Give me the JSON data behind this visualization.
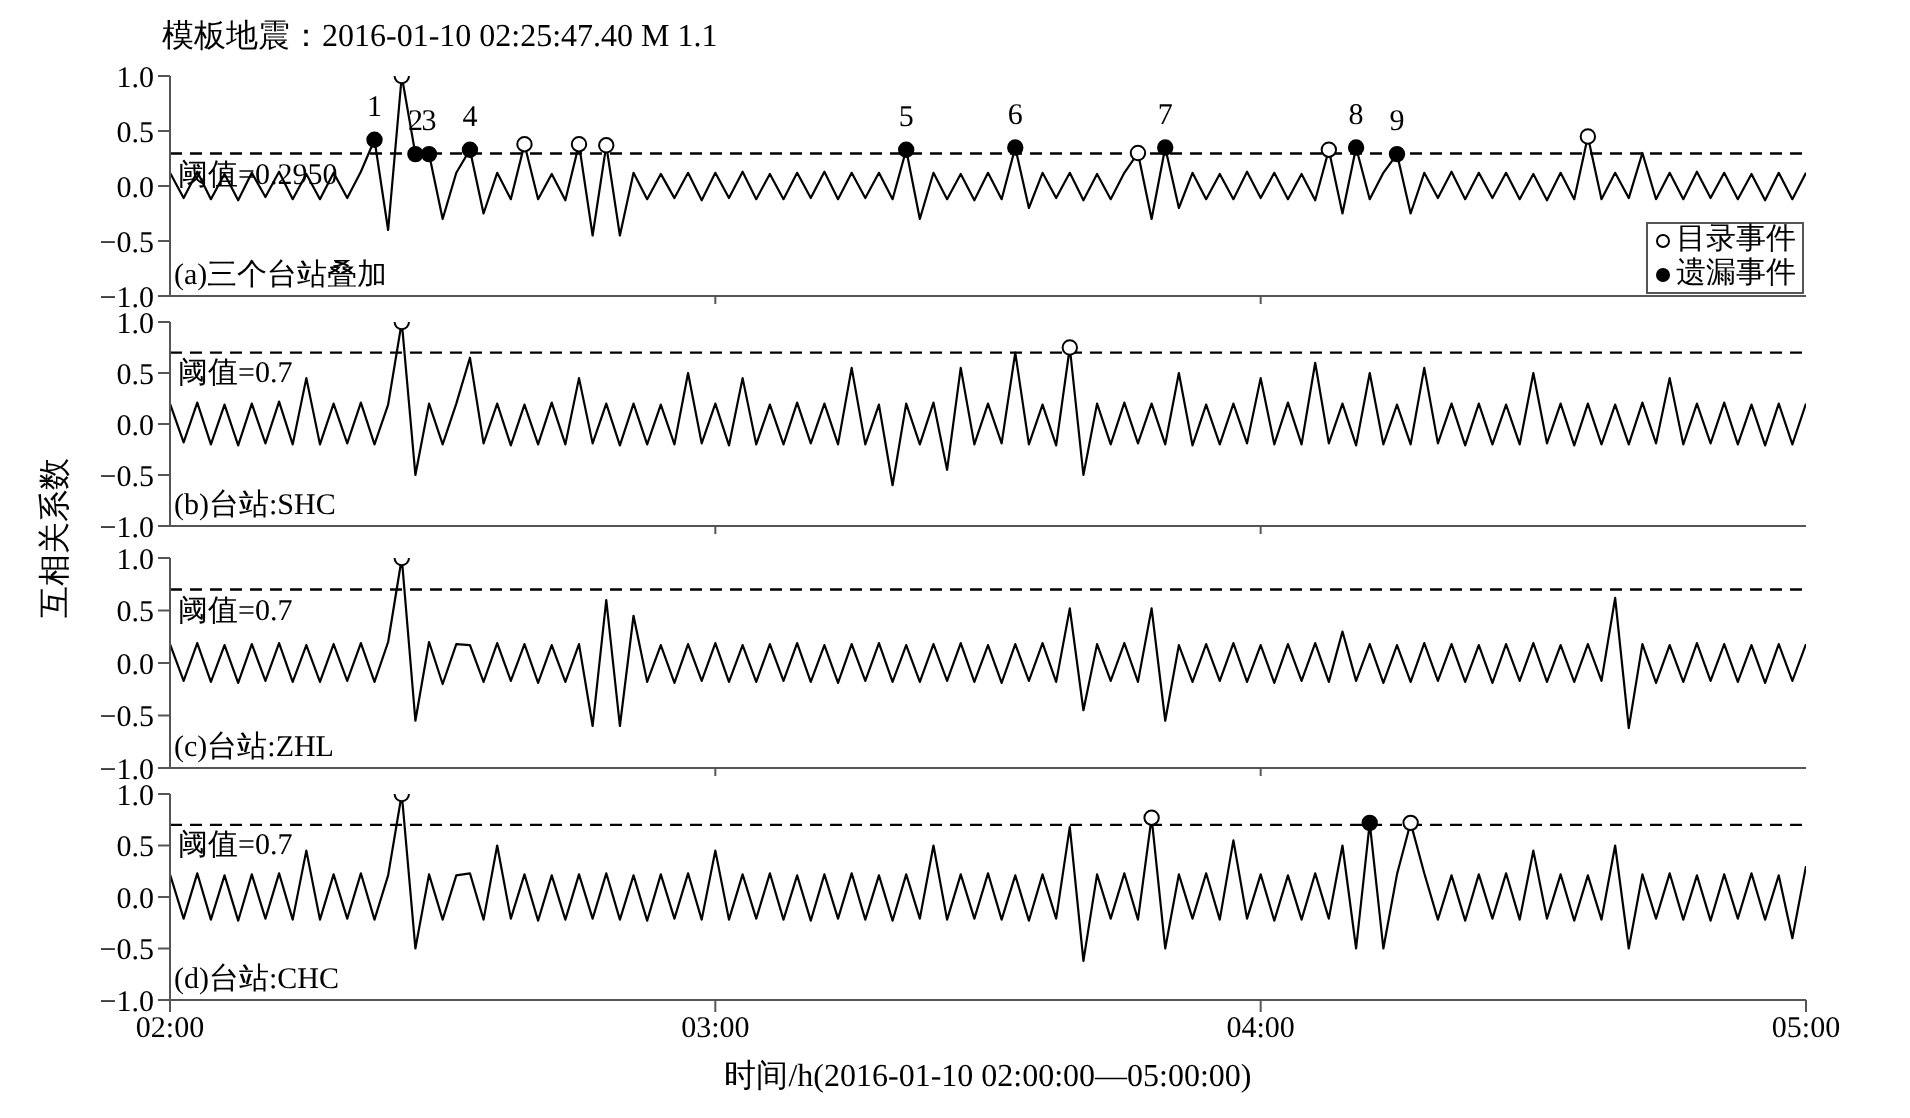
{
  "chart_data": [
    {
      "type": "line",
      "title": "模板地震：2016-01-10 02:25:47.40 M 1.1",
      "ylabel": "互相关系数",
      "xlim": [
        2,
        5
      ],
      "ylim": [
        -1,
        1
      ],
      "xticks": [
        {
          "value": 3,
          "label": null
        },
        {
          "value": 4,
          "label": null
        }
      ],
      "yticks": [
        {
          "value": -1,
          "label": "−1.0"
        },
        {
          "value": -0.5,
          "label": "−0.5"
        },
        {
          "value": 0,
          "label": "0.0"
        },
        {
          "value": 0.5,
          "label": "0.5"
        },
        {
          "value": 1,
          "label": "1.0"
        }
      ],
      "tick_labels": "y",
      "legend": "bottom right",
      "ref_lines": [
        {
          "axis": "y",
          "value": 0.295,
          "label": "阈值=0.2950",
          "line_style": "dashed",
          "color": "#000000"
        }
      ],
      "annotations": [
        "(a)三个台站叠加",
        {
          "text": "1",
          "x": 2.375,
          "y": 0.42
        },
        {
          "text": "2",
          "x": 2.45,
          "y": 0.29
        },
        {
          "text": "3",
          "x": 2.475,
          "y": 0.29
        },
        {
          "text": "4",
          "x": 2.55,
          "y": 0.33
        },
        {
          "text": "5",
          "x": 3.35,
          "y": 0.33
        },
        {
          "text": "6",
          "x": 3.55,
          "y": 0.35
        },
        {
          "text": "7",
          "x": 3.825,
          "y": 0.35
        },
        {
          "text": "8",
          "x": 4.175,
          "y": 0.35
        },
        {
          "text": "9",
          "x": 4.25,
          "y": 0.29
        }
      ],
      "x": [
        2,
        2.025,
        2.05,
        2.075,
        2.1,
        2.125,
        2.15,
        2.175,
        2.2,
        2.225,
        2.25,
        2.275,
        2.3,
        2.325,
        2.35,
        2.375,
        2.4,
        2.425,
        2.45,
        2.475,
        2.5,
        2.525,
        2.55,
        2.575,
        2.6,
        2.625,
        2.65,
        2.675,
        2.7,
        2.725,
        2.75,
        2.775,
        2.8,
        2.825,
        2.85,
        2.875,
        2.9,
        2.925,
        2.95,
        2.975,
        3,
        3.025,
        3.05,
        3.075,
        3.1,
        3.125,
        3.15,
        3.175,
        3.2,
        3.225,
        3.25,
        3.275,
        3.3,
        3.325,
        3.35,
        3.375,
        3.4,
        3.425,
        3.45,
        3.475,
        3.5,
        3.525,
        3.55,
        3.575,
        3.6,
        3.625,
        3.65,
        3.675,
        3.7,
        3.725,
        3.75,
        3.775,
        3.8,
        3.825,
        3.85,
        3.875,
        3.9,
        3.925,
        3.95,
        3.975,
        4,
        4.025,
        4.05,
        4.075,
        4.1,
        4.125,
        4.15,
        4.175,
        4.2,
        4.225,
        4.25,
        4.275,
        4.3,
        4.325,
        4.35,
        4.375,
        4.4,
        4.425,
        4.45,
        4.475,
        4.5,
        4.525,
        4.55,
        4.575,
        4.6,
        4.625,
        4.65,
        4.675,
        4.7,
        4.725,
        4.75,
        4.775,
        4.8,
        4.825,
        4.85,
        4.875,
        4.9,
        4.925,
        4.95,
        4.975,
        5
      ],
      "series": [
        {
          "color": "#000000",
          "values": [
            0.12,
            -0.11,
            0.13,
            -0.12,
            0.11,
            -0.13,
            0.12,
            -0.1,
            0.13,
            -0.12,
            0.11,
            -0.12,
            0.12,
            -0.11,
            0.13,
            0.42,
            -0.4,
            1.0,
            0.29,
            0.29,
            -0.3,
            0.12,
            0.33,
            -0.25,
            0.12,
            -0.12,
            0.38,
            -0.12,
            0.11,
            -0.13,
            0.38,
            -0.45,
            0.37,
            -0.45,
            0.12,
            -0.12,
            0.11,
            -0.11,
            0.12,
            -0.13,
            0.12,
            -0.11,
            0.13,
            -0.12,
            0.11,
            -0.12,
            0.12,
            -0.11,
            0.13,
            -0.12,
            0.12,
            -0.11,
            0.12,
            -0.12,
            0.33,
            -0.3,
            0.12,
            -0.12,
            0.11,
            -0.13,
            0.12,
            -0.12,
            0.35,
            -0.2,
            0.12,
            -0.11,
            0.12,
            -0.13,
            0.11,
            -0.12,
            0.12,
            0.3,
            -0.3,
            0.35,
            -0.2,
            0.12,
            -0.12,
            0.11,
            -0.12,
            0.13,
            -0.11,
            0.12,
            -0.12,
            0.11,
            -0.13,
            0.33,
            -0.25,
            0.35,
            -0.12,
            0.12,
            0.29,
            -0.25,
            0.12,
            -0.11,
            0.13,
            -0.12,
            0.12,
            -0.11,
            0.12,
            -0.12,
            0.11,
            -0.13,
            0.12,
            -0.12,
            0.45,
            -0.12,
            0.12,
            -0.11,
            0.3,
            -0.12,
            0.12,
            -0.12,
            0.13,
            -0.11,
            0.12,
            -0.12,
            0.11,
            -0.13,
            0.12,
            -0.12,
            0.12
          ]
        },
        {
          "type": "scatter",
          "name": "目录事件",
          "marker": "circle",
          "color": "#ffffff",
          "x": [
            2.425,
            2.65,
            2.75,
            2.8,
            3.775,
            4.125,
            4.6
          ],
          "values": [
            1.0,
            0.38,
            0.38,
            0.37,
            0.3,
            0.33,
            0.45
          ]
        },
        {
          "type": "scatter",
          "name": "遗漏事件",
          "marker": "circle",
          "color": "#000000",
          "x": [
            2.375,
            2.45,
            2.475,
            2.55,
            3.35,
            3.55,
            3.825,
            4.175,
            4.25
          ],
          "values": [
            0.42,
            0.29,
            0.29,
            0.33,
            0.33,
            0.35,
            0.35,
            0.35,
            0.29
          ]
        }
      ]
    },
    {
      "type": "line",
      "xlim": [
        2,
        5
      ],
      "ylim": [
        -1,
        1
      ],
      "xticks": [
        {
          "value": 3,
          "label": null
        },
        {
          "value": 4,
          "label": null
        }
      ],
      "yticks": [
        {
          "value": -1,
          "label": "−1.0"
        },
        {
          "value": -0.5,
          "label": "−0.5"
        },
        {
          "value": 0,
          "label": "0.0"
        },
        {
          "value": 0.5,
          "label": "0.5"
        },
        {
          "value": 1,
          "label": "1.0"
        }
      ],
      "tick_labels": "y",
      "ref_lines": [
        {
          "axis": "y",
          "value": 0.7,
          "label": "阈值=0.7",
          "line_style": "dashed",
          "color": "#000000"
        }
      ],
      "annotations": [
        "(b)台站:SHC"
      ],
      "x": [
        2,
        2.025,
        2.05,
        2.075,
        2.1,
        2.125,
        2.15,
        2.175,
        2.2,
        2.225,
        2.25,
        2.275,
        2.3,
        2.325,
        2.35,
        2.375,
        2.4,
        2.425,
        2.45,
        2.475,
        2.5,
        2.525,
        2.55,
        2.575,
        2.6,
        2.625,
        2.65,
        2.675,
        2.7,
        2.725,
        2.75,
        2.775,
        2.8,
        2.825,
        2.85,
        2.875,
        2.9,
        2.925,
        2.95,
        2.975,
        3,
        3.025,
        3.05,
        3.075,
        3.1,
        3.125,
        3.15,
        3.175,
        3.2,
        3.225,
        3.25,
        3.275,
        3.3,
        3.325,
        3.35,
        3.375,
        3.4,
        3.425,
        3.45,
        3.475,
        3.5,
        3.525,
        3.55,
        3.575,
        3.6,
        3.625,
        3.65,
        3.675,
        3.7,
        3.725,
        3.75,
        3.775,
        3.8,
        3.825,
        3.85,
        3.875,
        3.9,
        3.925,
        3.95,
        3.975,
        4,
        4.025,
        4.05,
        4.075,
        4.1,
        4.125,
        4.15,
        4.175,
        4.2,
        4.225,
        4.25,
        4.275,
        4.3,
        4.325,
        4.35,
        4.375,
        4.4,
        4.425,
        4.45,
        4.475,
        4.5,
        4.525,
        4.55,
        4.575,
        4.6,
        4.625,
        4.65,
        4.675,
        4.7,
        4.725,
        4.75,
        4.775,
        4.8,
        4.825,
        4.85,
        4.875,
        4.9,
        4.925,
        4.95,
        4.975,
        5
      ],
      "series": [
        {
          "color": "#000000",
          "values": [
            0.2,
            -0.18,
            0.21,
            -0.2,
            0.19,
            -0.21,
            0.2,
            -0.19,
            0.22,
            -0.2,
            0.45,
            -0.2,
            0.2,
            -0.19,
            0.21,
            -0.2,
            0.19,
            1.0,
            -0.5,
            0.2,
            -0.2,
            0.2,
            0.65,
            -0.19,
            0.2,
            -0.21,
            0.19,
            -0.2,
            0.21,
            -0.2,
            0.45,
            -0.19,
            0.2,
            -0.21,
            0.2,
            -0.2,
            0.19,
            -0.2,
            0.5,
            -0.19,
            0.2,
            -0.21,
            0.45,
            -0.2,
            0.19,
            -0.2,
            0.21,
            -0.19,
            0.2,
            -0.2,
            0.55,
            -0.2,
            0.19,
            -0.6,
            0.2,
            -0.2,
            0.21,
            -0.45,
            0.55,
            -0.2,
            0.2,
            -0.19,
            0.7,
            -0.2,
            0.19,
            -0.21,
            0.75,
            -0.5,
            0.2,
            -0.2,
            0.21,
            -0.19,
            0.2,
            -0.2,
            0.5,
            -0.21,
            0.19,
            -0.2,
            0.2,
            -0.19,
            0.45,
            -0.2,
            0.21,
            -0.2,
            0.6,
            -0.19,
            0.2,
            -0.21,
            0.5,
            -0.2,
            0.19,
            -0.2,
            0.55,
            -0.19,
            0.2,
            -0.21,
            0.2,
            -0.2,
            0.19,
            -0.2,
            0.5,
            -0.19,
            0.2,
            -0.21,
            0.2,
            -0.2,
            0.19,
            -0.2,
            0.21,
            -0.19,
            0.45,
            -0.2,
            0.2,
            -0.19,
            0.21,
            -0.2,
            0.19,
            -0.21,
            0.2,
            -0.2,
            0.2
          ]
        },
        {
          "type": "scatter",
          "marker": "circle",
          "color": "#ffffff",
          "x": [
            2.425,
            3.65
          ],
          "values": [
            1.0,
            0.75
          ]
        }
      ]
    },
    {
      "type": "line",
      "xlim": [
        2,
        5
      ],
      "ylim": [
        -1,
        1
      ],
      "xticks": [
        {
          "value": 3,
          "label": null
        },
        {
          "value": 4,
          "label": null
        }
      ],
      "yticks": [
        {
          "value": -1,
          "label": "−1.0"
        },
        {
          "value": -0.5,
          "label": "−0.5"
        },
        {
          "value": 0,
          "label": "0.0"
        },
        {
          "value": 0.5,
          "label": "0.5"
        },
        {
          "value": 1,
          "label": "1.0"
        }
      ],
      "tick_labels": "y",
      "ref_lines": [
        {
          "axis": "y",
          "value": 0.7,
          "label": "阈值=0.7",
          "line_style": "dashed",
          "color": "#000000"
        }
      ],
      "annotations": [
        "(c)台站:ZHL"
      ],
      "x": [
        2,
        2.025,
        2.05,
        2.075,
        2.1,
        2.125,
        2.15,
        2.175,
        2.2,
        2.225,
        2.25,
        2.275,
        2.3,
        2.325,
        2.35,
        2.375,
        2.4,
        2.425,
        2.45,
        2.475,
        2.5,
        2.525,
        2.55,
        2.575,
        2.6,
        2.625,
        2.65,
        2.675,
        2.7,
        2.725,
        2.75,
        2.775,
        2.8,
        2.825,
        2.85,
        2.875,
        2.9,
        2.925,
        2.95,
        2.975,
        3,
        3.025,
        3.05,
        3.075,
        3.1,
        3.125,
        3.15,
        3.175,
        3.2,
        3.225,
        3.25,
        3.275,
        3.3,
        3.325,
        3.35,
        3.375,
        3.4,
        3.425,
        3.45,
        3.475,
        3.5,
        3.525,
        3.55,
        3.575,
        3.6,
        3.625,
        3.65,
        3.675,
        3.7,
        3.725,
        3.75,
        3.775,
        3.8,
        3.825,
        3.85,
        3.875,
        3.9,
        3.925,
        3.95,
        3.975,
        4,
        4.025,
        4.05,
        4.075,
        4.1,
        4.125,
        4.15,
        4.175,
        4.2,
        4.225,
        4.25,
        4.275,
        4.3,
        4.325,
        4.35,
        4.375,
        4.4,
        4.425,
        4.45,
        4.475,
        4.5,
        4.525,
        4.55,
        4.575,
        4.6,
        4.625,
        4.65,
        4.675,
        4.7,
        4.725,
        4.75,
        4.775,
        4.8,
        4.825,
        4.85,
        4.875,
        4.9,
        4.925,
        4.95,
        4.975,
        5
      ],
      "series": [
        {
          "color": "#000000",
          "values": [
            0.18,
            -0.17,
            0.19,
            -0.18,
            0.17,
            -0.19,
            0.18,
            -0.17,
            0.19,
            -0.18,
            0.17,
            -0.18,
            0.18,
            -0.17,
            0.19,
            -0.18,
            0.2,
            1.0,
            -0.55,
            0.2,
            -0.2,
            0.18,
            0.17,
            -0.18,
            0.19,
            -0.17,
            0.18,
            -0.19,
            0.17,
            -0.18,
            0.18,
            -0.6,
            0.6,
            -0.6,
            0.45,
            -0.18,
            0.17,
            -0.19,
            0.18,
            -0.17,
            0.19,
            -0.18,
            0.17,
            -0.18,
            0.18,
            -0.17,
            0.19,
            -0.18,
            0.17,
            -0.19,
            0.18,
            -0.17,
            0.19,
            -0.18,
            0.17,
            -0.18,
            0.18,
            -0.17,
            0.19,
            -0.18,
            0.17,
            -0.19,
            0.18,
            -0.17,
            0.19,
            -0.18,
            0.52,
            -0.45,
            0.18,
            -0.17,
            0.19,
            -0.18,
            0.52,
            -0.55,
            0.17,
            -0.18,
            0.18,
            -0.17,
            0.19,
            -0.18,
            0.17,
            -0.19,
            0.18,
            -0.17,
            0.19,
            -0.18,
            0.3,
            -0.17,
            0.18,
            -0.19,
            0.17,
            -0.18,
            0.19,
            -0.17,
            0.18,
            -0.18,
            0.17,
            -0.19,
            0.18,
            -0.17,
            0.19,
            -0.18,
            0.17,
            -0.18,
            0.18,
            -0.17,
            0.62,
            -0.62,
            0.18,
            -0.19,
            0.17,
            -0.18,
            0.19,
            -0.17,
            0.18,
            -0.18,
            0.17,
            -0.19,
            0.18,
            -0.17,
            0.18
          ]
        },
        {
          "type": "scatter",
          "marker": "circle",
          "color": "#ffffff",
          "x": [
            2.425
          ],
          "values": [
            1.0
          ]
        }
      ]
    },
    {
      "type": "line",
      "xlabel": "时间/h(2016-01-10 02:00:00—05:00:00)",
      "xlim": [
        2,
        5
      ],
      "ylim": [
        -1,
        1
      ],
      "xticks": [
        {
          "value": 2,
          "label": "02:00"
        },
        {
          "value": 3,
          "label": "03:00"
        },
        {
          "value": 4,
          "label": "04:00"
        },
        {
          "value": 5,
          "label": "05:00"
        }
      ],
      "yticks": [
        {
          "value": -1,
          "label": "−1.0"
        },
        {
          "value": -0.5,
          "label": "−0.5"
        },
        {
          "value": 0,
          "label": "0.0"
        },
        {
          "value": 0.5,
          "label": "0.5"
        },
        {
          "value": 1,
          "label": "1.0"
        }
      ],
      "ref_lines": [
        {
          "axis": "y",
          "value": 0.7,
          "label": "阈值=0.7",
          "line_style": "dashed",
          "color": "#000000"
        }
      ],
      "annotations": [
        "(d)台站:CHC"
      ],
      "x": [
        2,
        2.025,
        2.05,
        2.075,
        2.1,
        2.125,
        2.15,
        2.175,
        2.2,
        2.225,
        2.25,
        2.275,
        2.3,
        2.325,
        2.35,
        2.375,
        2.4,
        2.425,
        2.45,
        2.475,
        2.5,
        2.525,
        2.55,
        2.575,
        2.6,
        2.625,
        2.65,
        2.675,
        2.7,
        2.725,
        2.75,
        2.775,
        2.8,
        2.825,
        2.85,
        2.875,
        2.9,
        2.925,
        2.95,
        2.975,
        3,
        3.025,
        3.05,
        3.075,
        3.1,
        3.125,
        3.15,
        3.175,
        3.2,
        3.225,
        3.25,
        3.275,
        3.3,
        3.325,
        3.35,
        3.375,
        3.4,
        3.425,
        3.45,
        3.475,
        3.5,
        3.525,
        3.55,
        3.575,
        3.6,
        3.625,
        3.65,
        3.675,
        3.7,
        3.725,
        3.75,
        3.775,
        3.8,
        3.825,
        3.85,
        3.875,
        3.9,
        3.925,
        3.95,
        3.975,
        4,
        4.025,
        4.05,
        4.075,
        4.1,
        4.125,
        4.15,
        4.175,
        4.2,
        4.225,
        4.25,
        4.275,
        4.3,
        4.325,
        4.35,
        4.375,
        4.4,
        4.425,
        4.45,
        4.475,
        4.5,
        4.525,
        4.55,
        4.575,
        4.6,
        4.625,
        4.65,
        4.675,
        4.7,
        4.725,
        4.75,
        4.775,
        4.8,
        4.825,
        4.85,
        4.875,
        4.9,
        4.925,
        4.95,
        4.975,
        5
      ],
      "series": [
        {
          "color": "#000000",
          "values": [
            0.22,
            -0.21,
            0.23,
            -0.22,
            0.21,
            -0.23,
            0.22,
            -0.21,
            0.23,
            -0.22,
            0.45,
            -0.22,
            0.22,
            -0.21,
            0.23,
            -0.22,
            0.21,
            1.0,
            -0.5,
            0.22,
            -0.22,
            0.21,
            0.23,
            -0.22,
            0.5,
            -0.21,
            0.22,
            -0.23,
            0.21,
            -0.22,
            0.22,
            -0.21,
            0.23,
            -0.22,
            0.21,
            -0.23,
            0.22,
            -0.21,
            0.23,
            -0.22,
            0.45,
            -0.22,
            0.22,
            -0.21,
            0.23,
            -0.22,
            0.21,
            -0.23,
            0.22,
            -0.21,
            0.23,
            -0.22,
            0.21,
            -0.23,
            0.22,
            -0.21,
            0.5,
            -0.22,
            0.22,
            -0.21,
            0.23,
            -0.22,
            0.21,
            -0.23,
            0.22,
            -0.21,
            0.68,
            -0.62,
            0.22,
            -0.21,
            0.23,
            -0.22,
            0.77,
            -0.5,
            0.22,
            -0.21,
            0.23,
            -0.22,
            0.55,
            -0.21,
            0.22,
            -0.23,
            0.21,
            -0.22,
            0.23,
            -0.21,
            0.5,
            -0.5,
            0.72,
            -0.5,
            0.22,
            0.72,
            0.23,
            -0.22,
            0.21,
            -0.23,
            0.22,
            -0.21,
            0.23,
            -0.22,
            0.45,
            -0.21,
            0.22,
            -0.23,
            0.21,
            -0.22,
            0.5,
            -0.5,
            0.22,
            -0.21,
            0.23,
            -0.22,
            0.21,
            -0.23,
            0.22,
            -0.21,
            0.23,
            -0.22,
            0.21,
            -0.4,
            0.3
          ]
        },
        {
          "type": "scatter",
          "marker": "circle",
          "color": "#ffffff",
          "x": [
            2.425,
            3.8,
            4.275
          ],
          "values": [
            1.0,
            0.77,
            0.72
          ]
        },
        {
          "type": "scatter",
          "marker": "circle",
          "color": "#000000",
          "x": [
            4.2
          ],
          "values": [
            0.72
          ]
        }
      ]
    }
  ]
}
